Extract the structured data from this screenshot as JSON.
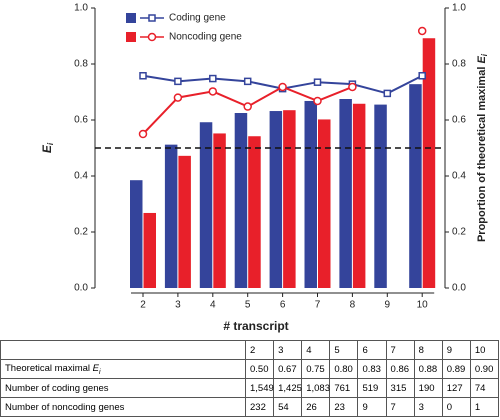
{
  "chart_data": {
    "type": "bar",
    "x_label": "# transcript",
    "y_label": {
      "var": "E",
      "sub": "i"
    },
    "y2_label": {
      "text": "Proportion of theoretical maximal ",
      "var": "E",
      "sub": "i"
    },
    "categories": [
      "2",
      "3",
      "4",
      "5",
      "6",
      "7",
      "8",
      "9",
      "10"
    ],
    "series": [
      {
        "name": "Coding gene",
        "color": "#34449b",
        "marker": "square",
        "values": [
          0.385,
          0.512,
          0.592,
          0.625,
          0.632,
          0.668,
          0.675,
          0.655,
          0.728
        ],
        "line_values": [
          0.758,
          0.738,
          0.748,
          0.738,
          0.712,
          0.735,
          0.728,
          0.695,
          0.758
        ],
        "line_axis": "y2"
      },
      {
        "name": "Noncoding gene",
        "color": "#e8202a",
        "marker": "circle",
        "values": [
          0.268,
          0.472,
          0.552,
          0.542,
          0.635,
          0.602,
          0.658,
          null,
          0.892
        ],
        "line_values": [
          0.55,
          0.68,
          0.702,
          0.648,
          0.718,
          0.668,
          0.718,
          null,
          0.918
        ],
        "line_axis": "y2"
      }
    ],
    "reference_line": 0.5,
    "ylim": [
      0,
      1
    ],
    "yticks": [
      {
        "value": 0,
        "label": "0.0"
      },
      {
        "value": 0.2,
        "label": "0.2"
      },
      {
        "value": 0.4,
        "label": "0.4"
      },
      {
        "value": 0.6,
        "label": "0.6"
      },
      {
        "value": 0.8,
        "label": "0.8"
      },
      {
        "value": 1,
        "label": "1.0"
      }
    ],
    "y2lim": [
      0,
      1
    ],
    "y2ticks": [
      {
        "value": 0,
        "label": "0.0"
      },
      {
        "value": 0.2,
        "label": "0.2"
      },
      {
        "value": 0.4,
        "label": "0.4"
      },
      {
        "value": 0.6,
        "label": "0.6"
      },
      {
        "value": 0.8,
        "label": "0.8"
      },
      {
        "value": 1,
        "label": "1.0"
      }
    ],
    "legend": "upper left"
  },
  "table": {
    "header": [
      "2",
      "3",
      "4",
      "5",
      "6",
      "7",
      "8",
      "9",
      "10"
    ],
    "rows": [
      {
        "label": {
          "text": "Theoretical maximal ",
          "var": "E",
          "sub": "i"
        },
        "cells": [
          "0.50",
          "0.67",
          "0.75",
          "0.80",
          "0.83",
          "0.86",
          "0.88",
          "0.89",
          "0.90"
        ]
      },
      {
        "label": {
          "text": "Number of coding genes"
        },
        "cells": [
          "1,549",
          "1,425",
          "1,083",
          "761",
          "519",
          "315",
          "190",
          "127",
          "74"
        ]
      },
      {
        "label": {
          "text": "Number of noncoding genes"
        },
        "cells": [
          "232",
          "54",
          "26",
          "23",
          "9",
          "7",
          "3",
          "0",
          "1"
        ]
      }
    ]
  }
}
